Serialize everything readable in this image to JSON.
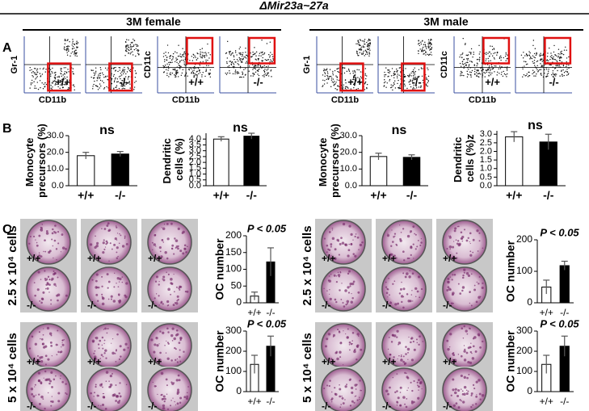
{
  "header": {
    "title": "ΔMir23a~27a",
    "groups": [
      "3M female",
      "3M male"
    ]
  },
  "panel_labels": [
    "A",
    "B",
    "C"
  ],
  "flow": [
    [
      {
        "ylabel": "Gr-1",
        "xlabel": "CD11b",
        "genotype": "+/+"
      },
      {
        "genotype": "-/-"
      },
      {
        "ylabel": "CD11c",
        "xlabel": "CD11b",
        "genotype": "+/+"
      },
      {
        "genotype": "-/-"
      }
    ],
    [
      {
        "ylabel": "Gr-1",
        "xlabel": "CD11b",
        "genotype": "+/+"
      },
      {
        "genotype": "-/-"
      },
      {
        "ylabel": "CD11c",
        "xlabel": "CD11b",
        "genotype": "+/+"
      },
      {
        "genotype": "-/-"
      }
    ]
  ],
  "wells": [
    [
      {
        "label": "2.5 x 10⁴ cells",
        "rows": [
          [
            "+/+",
            "+/+",
            "+/+"
          ],
          [
            "-/-",
            "-/-",
            "-/-"
          ]
        ]
      },
      {
        "label": "5 x 10⁴ cells",
        "rows": [
          [
            "+/+",
            "+/+",
            "+/+"
          ],
          [
            "-/-",
            "-/-",
            "-/-"
          ]
        ]
      }
    ],
    [
      {
        "label": "2.5 x 10⁴ cells",
        "rows": [
          [
            "+/+",
            "+/+",
            "+/+"
          ],
          [
            "-/-",
            "-/-",
            "-/-"
          ]
        ]
      },
      {
        "label": "5 x 10⁴ cells",
        "rows": [
          [
            "+/+",
            "+/+",
            "+/+"
          ],
          [
            "-/-",
            "-/-",
            "-/-"
          ]
        ]
      }
    ]
  ],
  "chart_data": [
    {
      "type": "bar",
      "ylabel": "Monocyte precursors (%)",
      "annotation": "ns",
      "categories": [
        "+/+",
        "-/-"
      ],
      "values": [
        18,
        19
      ],
      "errors": [
        2,
        1.5
      ],
      "colors": [
        "#ffffff",
        "#000000"
      ],
      "ylim": [
        0,
        30
      ],
      "yticks": [
        {
          "value": 0,
          "label": "0.0"
        },
        {
          "value": 10,
          "label": "10.0"
        },
        {
          "value": 20,
          "label": "20.0"
        },
        {
          "value": 30,
          "label": "30.0"
        }
      ]
    },
    {
      "type": "bar",
      "ylabel": "Dendritic cells (%)",
      "annotation": "ns",
      "categories": [
        "+/+",
        "-/-"
      ],
      "values": [
        4.0,
        4.25
      ],
      "errors": [
        0.2,
        0.25
      ],
      "colors": [
        "#ffffff",
        "#000000"
      ],
      "ylim": [
        0,
        4.5
      ],
      "yticks": [
        {
          "value": 0,
          "label": "0.0"
        },
        {
          "value": 0.5,
          "label": "0.5"
        },
        {
          "value": 1,
          "label": "1.0"
        },
        {
          "value": 1.5,
          "label": "1.5"
        },
        {
          "value": 2,
          "label": "2.0"
        },
        {
          "value": 2.5,
          "label": "2.5"
        },
        {
          "value": 3,
          "label": "3.0"
        },
        {
          "value": 3.5,
          "label": "3.5"
        },
        {
          "value": 4,
          "label": "4.0"
        }
      ]
    },
    {
      "type": "bar",
      "ylabel": "Monocyte precursors (%)",
      "annotation": "ns",
      "categories": [
        "+/+",
        "-/-"
      ],
      "values": [
        17.5,
        17
      ],
      "errors": [
        2,
        1.5
      ],
      "colors": [
        "#ffffff",
        "#000000"
      ],
      "ylim": [
        0,
        30
      ],
      "yticks": [
        {
          "value": 0,
          "label": "0.0"
        },
        {
          "value": 10,
          "label": "10.0"
        },
        {
          "value": 20,
          "label": "20.0"
        },
        {
          "value": 30,
          "label": "30.0"
        }
      ]
    },
    {
      "type": "bar",
      "ylabel": "Dendritic cells (%)z",
      "annotation": "ns",
      "categories": [
        "+/+",
        "-/-"
      ],
      "values": [
        2.85,
        2.55
      ],
      "errors": [
        0.3,
        0.45
      ],
      "colors": [
        "#ffffff",
        "#000000"
      ],
      "ylim": [
        0,
        3.2
      ],
      "yticks": [
        {
          "value": 0,
          "label": "0.0"
        },
        {
          "value": 0.5,
          "label": "0.5"
        },
        {
          "value": 1,
          "label": "1.0"
        },
        {
          "value": 1.5,
          "label": "1.5"
        },
        {
          "value": 2,
          "label": "2.0"
        },
        {
          "value": 2.5,
          "label": "2.5"
        },
        {
          "value": 3,
          "label": "3.0"
        }
      ]
    },
    {
      "type": "bar",
      "ylabel": "OC number",
      "annotation": "P < 0.05",
      "categories": [
        "+/+",
        "-/-"
      ],
      "values": [
        20,
        122
      ],
      "errors": [
        12,
        42
      ],
      "colors": [
        "#ffffff",
        "#000000"
      ],
      "ylim": [
        0,
        200
      ],
      "yticks": [
        0,
        50,
        100,
        150,
        200
      ]
    },
    {
      "type": "bar",
      "ylabel": "OC number",
      "annotation": "P < 0.05",
      "categories": [
        "+/+",
        "-/-"
      ],
      "values": [
        135,
        225
      ],
      "errors": [
        45,
        50
      ],
      "colors": [
        "#ffffff",
        "#000000"
      ],
      "ylim": [
        0,
        300
      ],
      "yticks": [
        0,
        100,
        200,
        300
      ]
    },
    {
      "type": "bar",
      "ylabel": "OC number",
      "annotation": "P < 0.05",
      "categories": [
        "+/+",
        "-/-"
      ],
      "values": [
        50,
        118
      ],
      "errors": [
        22,
        14
      ],
      "colors": [
        "#ffffff",
        "#000000"
      ],
      "ylim": [
        0,
        200
      ],
      "yticks": [
        0,
        100,
        200
      ]
    },
    {
      "type": "bar",
      "ylabel": "OC number",
      "annotation": "P < 0.05",
      "categories": [
        "+/+",
        "-/-"
      ],
      "values": [
        135,
        225
      ],
      "errors": [
        45,
        50
      ],
      "colors": [
        "#ffffff",
        "#000000"
      ],
      "ylim": [
        0,
        300
      ],
      "yticks": [
        0,
        100,
        200,
        300
      ]
    }
  ]
}
